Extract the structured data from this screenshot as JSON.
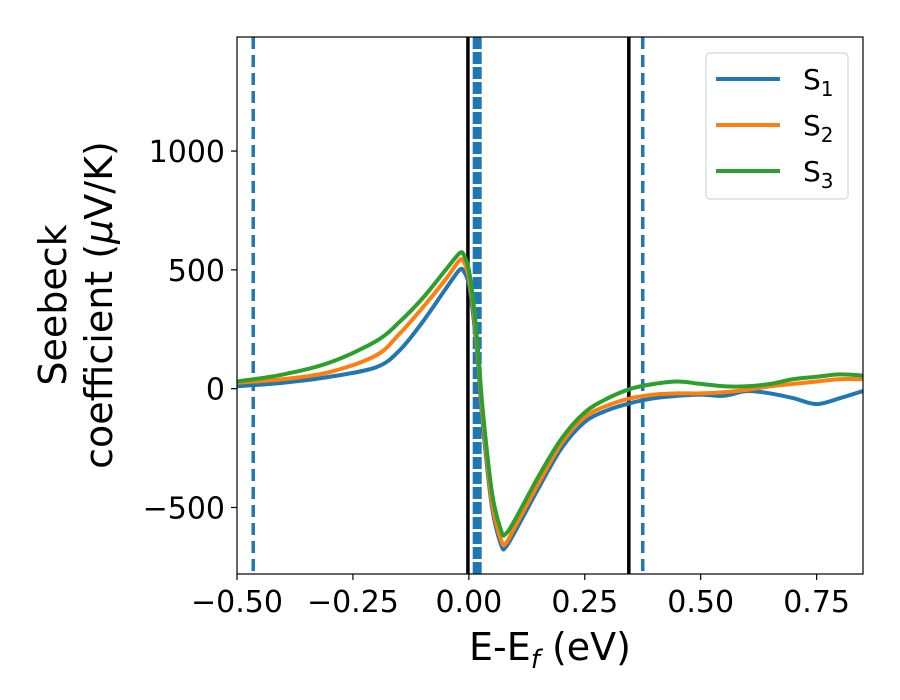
{
  "chart_data": {
    "type": "line",
    "xlabel": {
      "main": "E-E",
      "sub": "f",
      "unit": " (eV)"
    },
    "ylabel": {
      "line1": "Seebeck",
      "line2": "coefficient  (",
      "mu": "μ",
      "unit": "V/K)"
    },
    "xlim": [
      -0.5,
      0.85
    ],
    "ylim": [
      -780,
      1480
    ],
    "xticks": [
      -0.5,
      -0.25,
      0.0,
      0.25,
      0.5,
      0.75
    ],
    "xtick_labels": [
      "−0.50",
      "−0.25",
      "0.00",
      "0.25",
      "0.50",
      "0.75"
    ],
    "yticks": [
      -500,
      0,
      500,
      1000
    ],
    "ytick_labels": [
      "−500",
      "0",
      "500",
      "1000"
    ],
    "legend_position": "top-right",
    "vlines": [
      {
        "x": -0.465,
        "style": "dashed",
        "color": "#1f77b4"
      },
      {
        "x": -0.002,
        "style": "solid",
        "color": "#000000"
      },
      {
        "x": 0.018,
        "style": "dashed-thick",
        "color": "#1f77b4"
      },
      {
        "x": 0.345,
        "style": "solid",
        "color": "#000000"
      },
      {
        "x": 0.375,
        "style": "dashed",
        "color": "#1f77b4"
      }
    ],
    "series": [
      {
        "name": "S",
        "sub": "1",
        "color": "#1f77b4",
        "x": [
          -0.5,
          -0.4,
          -0.3,
          -0.2,
          -0.15,
          -0.1,
          -0.05,
          -0.02,
          -0.01,
          0.0,
          0.01,
          0.02,
          0.03,
          0.05,
          0.07,
          0.08,
          0.1,
          0.15,
          0.2,
          0.25,
          0.3,
          0.35,
          0.4,
          0.45,
          0.5,
          0.55,
          0.6,
          0.65,
          0.7,
          0.75,
          0.8,
          0.85
        ],
        "y": [
          10,
          25,
          50,
          90,
          160,
          280,
          420,
          500,
          490,
          440,
          300,
          100,
          -150,
          -500,
          -660,
          -665,
          -600,
          -420,
          -250,
          -140,
          -90,
          -60,
          -40,
          -30,
          -25,
          -30,
          -10,
          -20,
          -40,
          -65,
          -40,
          -10
        ]
      },
      {
        "name": "S",
        "sub": "2",
        "color": "#ff7f0e",
        "x": [
          -0.5,
          -0.4,
          -0.3,
          -0.2,
          -0.15,
          -0.1,
          -0.05,
          -0.02,
          -0.01,
          0.0,
          0.01,
          0.02,
          0.03,
          0.05,
          0.07,
          0.08,
          0.1,
          0.15,
          0.2,
          0.25,
          0.3,
          0.35,
          0.4,
          0.45,
          0.5,
          0.55,
          0.6,
          0.65,
          0.7,
          0.75,
          0.8,
          0.85
        ],
        "y": [
          25,
          40,
          70,
          140,
          230,
          340,
          460,
          540,
          530,
          470,
          330,
          130,
          -120,
          -480,
          -640,
          -650,
          -580,
          -400,
          -230,
          -120,
          -70,
          -40,
          -25,
          -20,
          -20,
          -15,
          -5,
          10,
          20,
          30,
          40,
          40
        ]
      },
      {
        "name": "S",
        "sub": "3",
        "color": "#2ca02c",
        "x": [
          -0.5,
          -0.4,
          -0.3,
          -0.2,
          -0.15,
          -0.1,
          -0.05,
          -0.02,
          -0.01,
          0.0,
          0.01,
          0.02,
          0.03,
          0.05,
          0.07,
          0.08,
          0.1,
          0.15,
          0.2,
          0.25,
          0.3,
          0.35,
          0.4,
          0.45,
          0.5,
          0.55,
          0.6,
          0.65,
          0.7,
          0.75,
          0.8,
          0.85
        ],
        "y": [
          30,
          60,
          110,
          200,
          280,
          380,
          500,
          570,
          560,
          500,
          360,
          160,
          -90,
          -440,
          -600,
          -610,
          -550,
          -370,
          -210,
          -100,
          -40,
          0,
          20,
          30,
          20,
          10,
          10,
          20,
          40,
          50,
          60,
          55
        ]
      }
    ]
  }
}
